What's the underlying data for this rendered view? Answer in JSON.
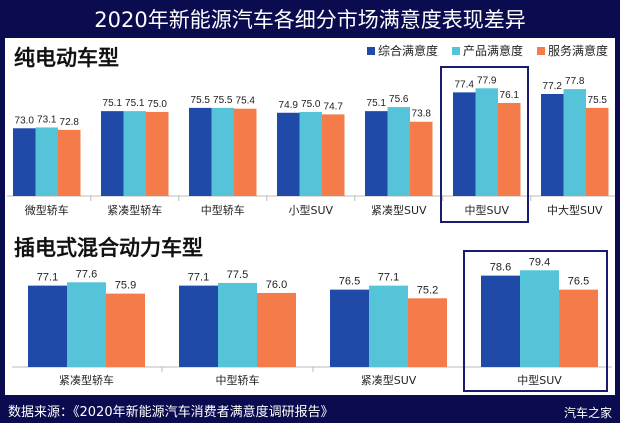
{
  "title": "2020年新能源汽车各细分市场满意度表现差异",
  "legend": [
    "综合满意度",
    "产品满意度",
    "服务满意度"
  ],
  "colors": [
    "#1f4aa8",
    "#55c4d8",
    "#f47c4a"
  ],
  "footer": "数据来源：《2020年新能源汽车消费者满意度调研报告》",
  "watermark": "汽车之家",
  "chart_data": [
    {
      "type": "bar",
      "title": "纯电动车型",
      "categories": [
        "微型轿车",
        "紧凑型轿车",
        "中型轿车",
        "小型SUV",
        "紧凑型SUV",
        "中型SUV",
        "中大型SUV"
      ],
      "highlighted": "中型SUV",
      "series": [
        {
          "name": "综合满意度",
          "values": [
            73.0,
            75.1,
            75.5,
            74.9,
            75.1,
            77.4,
            77.2
          ]
        },
        {
          "name": "产品满意度",
          "values": [
            73.1,
            75.1,
            75.5,
            75.0,
            75.6,
            77.9,
            77.8
          ]
        },
        {
          "name": "服务满意度",
          "values": [
            72.8,
            75.0,
            75.4,
            74.7,
            73.8,
            76.1,
            75.5
          ]
        }
      ]
    },
    {
      "type": "bar",
      "title": "插电式混合动力车型",
      "categories": [
        "紧凑型轿车",
        "中型轿车",
        "紧凑型SUV",
        "中型SUV"
      ],
      "highlighted": "中型SUV",
      "series": [
        {
          "name": "综合满意度",
          "values": [
            77.1,
            77.1,
            76.5,
            78.6
          ]
        },
        {
          "name": "产品满意度",
          "values": [
            77.6,
            77.5,
            77.1,
            79.4
          ]
        },
        {
          "name": "服务满意度",
          "values": [
            75.9,
            76.0,
            75.2,
            76.5
          ]
        }
      ]
    }
  ]
}
